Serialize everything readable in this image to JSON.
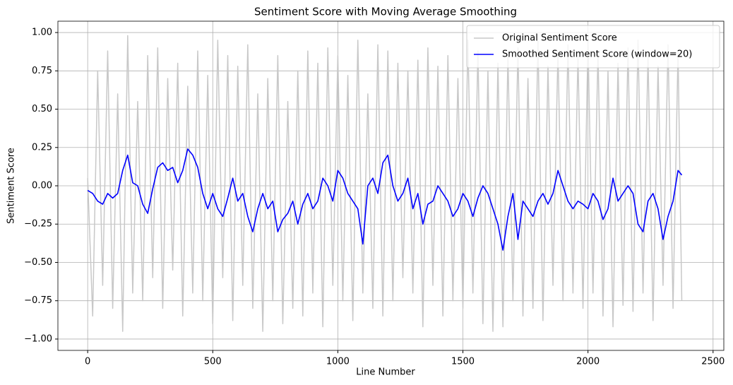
{
  "chart_data": {
    "type": "line",
    "title": "Sentiment Score with Moving Average Smoothing",
    "xlabel": "Line Number",
    "ylabel": "Sentiment Score",
    "x": [
      0,
      20,
      40,
      60,
      80,
      100,
      120,
      140,
      160,
      180,
      200,
      220,
      240,
      260,
      280,
      300,
      320,
      340,
      360,
      380,
      400,
      420,
      440,
      460,
      480,
      500,
      520,
      540,
      560,
      580,
      600,
      620,
      640,
      660,
      680,
      700,
      720,
      740,
      760,
      780,
      800,
      820,
      840,
      860,
      880,
      900,
      920,
      940,
      960,
      980,
      1000,
      1020,
      1040,
      1060,
      1080,
      1100,
      1120,
      1140,
      1160,
      1180,
      1200,
      1220,
      1240,
      1260,
      1280,
      1300,
      1320,
      1340,
      1360,
      1380,
      1400,
      1420,
      1440,
      1460,
      1480,
      1500,
      1520,
      1540,
      1560,
      1580,
      1600,
      1620,
      1640,
      1660,
      1680,
      1700,
      1720,
      1740,
      1760,
      1780,
      1800,
      1820,
      1840,
      1860,
      1880,
      1900,
      1920,
      1940,
      1960,
      1980,
      2000,
      2020,
      2040,
      2060,
      2080,
      2100,
      2120,
      2140,
      2160,
      2180,
      2200,
      2220,
      2240,
      2260,
      2280,
      2300,
      2320,
      2340,
      2360,
      2375
    ],
    "series": [
      {
        "name": "Original Sentiment Score",
        "color": "#c8c8c8",
        "width": 1.5,
        "values": [
          0.05,
          -0.85,
          0.75,
          -0.65,
          0.88,
          -0.8,
          0.6,
          -0.95,
          0.98,
          -0.7,
          0.55,
          -0.75,
          0.85,
          -0.6,
          0.9,
          -0.8,
          0.7,
          -0.55,
          0.8,
          -0.85,
          0.65,
          -0.7,
          0.88,
          -0.75,
          0.72,
          -0.9,
          0.95,
          -0.6,
          0.85,
          -0.88,
          0.78,
          -0.65,
          0.92,
          -0.8,
          0.6,
          -0.95,
          0.7,
          -0.75,
          0.85,
          -0.9,
          0.55,
          -0.8,
          0.75,
          -0.85,
          0.88,
          -0.7,
          0.8,
          -0.92,
          0.9,
          -0.65,
          0.85,
          -0.75,
          0.72,
          -0.88,
          0.95,
          -0.7,
          0.6,
          -0.8,
          0.92,
          -0.85,
          0.88,
          -0.75,
          0.8,
          -0.6,
          0.75,
          -0.7,
          0.82,
          -0.92,
          0.9,
          -0.65,
          0.78,
          -0.85,
          0.85,
          -0.75,
          0.7,
          -0.8,
          0.95,
          -0.7,
          0.88,
          -0.9,
          0.75,
          -0.95,
          0.8,
          -0.92,
          0.85,
          -0.75,
          0.9,
          -0.85,
          0.7,
          -0.8,
          0.95,
          -0.88,
          0.78,
          -0.65,
          0.88,
          -0.75,
          0.92,
          -0.7,
          0.85,
          -0.8,
          0.95,
          -0.7,
          0.88,
          -0.85,
          0.75,
          -0.92,
          0.8,
          -0.78,
          0.9,
          -0.82,
          0.95,
          -0.7,
          0.85,
          -0.88,
          0.78,
          -0.65,
          0.92,
          -0.8,
          0.88,
          -0.75
        ]
      },
      {
        "name": "Smoothed Sentiment Score (window=20)",
        "color": "#0000ff",
        "width": 1.6,
        "values": [
          -0.03,
          -0.05,
          -0.1,
          -0.12,
          -0.05,
          -0.08,
          -0.05,
          0.1,
          0.2,
          0.02,
          0.0,
          -0.12,
          -0.18,
          -0.02,
          0.12,
          0.15,
          0.1,
          0.12,
          0.02,
          0.1,
          0.24,
          0.2,
          0.12,
          -0.05,
          -0.15,
          -0.05,
          -0.15,
          -0.2,
          -0.08,
          0.05,
          -0.1,
          -0.05,
          -0.2,
          -0.3,
          -0.15,
          -0.05,
          -0.15,
          -0.1,
          -0.3,
          -0.22,
          -0.18,
          -0.1,
          -0.25,
          -0.12,
          -0.05,
          -0.15,
          -0.1,
          0.05,
          0.0,
          -0.1,
          0.1,
          0.05,
          -0.05,
          -0.1,
          -0.15,
          -0.38,
          0.0,
          0.05,
          -0.05,
          0.15,
          0.2,
          0.0,
          -0.1,
          -0.05,
          0.05,
          -0.15,
          -0.05,
          -0.25,
          -0.12,
          -0.1,
          0.0,
          -0.05,
          -0.1,
          -0.2,
          -0.15,
          -0.05,
          -0.1,
          -0.2,
          -0.08,
          0.0,
          -0.05,
          -0.15,
          -0.25,
          -0.42,
          -0.2,
          -0.05,
          -0.35,
          -0.1,
          -0.15,
          -0.2,
          -0.1,
          -0.05,
          -0.12,
          -0.05,
          0.1,
          0.0,
          -0.1,
          -0.15,
          -0.1,
          -0.12,
          -0.15,
          -0.05,
          -0.1,
          -0.22,
          -0.15,
          0.05,
          -0.1,
          -0.05,
          0.0,
          -0.05,
          -0.25,
          -0.3,
          -0.1,
          -0.05,
          -0.15,
          -0.35,
          -0.2,
          -0.1,
          0.1,
          0.07
        ]
      }
    ],
    "xlim": [
      -119,
      2543
    ],
    "xticks": [
      0,
      500,
      1000,
      1500,
      2000,
      2500
    ],
    "ylim": [
      -1.074,
      1.074
    ],
    "yticks": [
      {
        "value": -1,
        "label": "−1.00"
      },
      {
        "value": -0.75,
        "label": "−0.75"
      },
      {
        "value": -0.5,
        "label": "−0.50"
      },
      {
        "value": -0.25,
        "label": "−0.25"
      },
      {
        "value": 0,
        "label": "0.00"
      },
      {
        "value": 0.25,
        "label": "0.25"
      },
      {
        "value": 0.5,
        "label": "0.50"
      },
      {
        "value": 0.75,
        "label": "0.75"
      },
      {
        "value": 1,
        "label": "1.00"
      }
    ],
    "grid": true,
    "legend": "upper right"
  }
}
